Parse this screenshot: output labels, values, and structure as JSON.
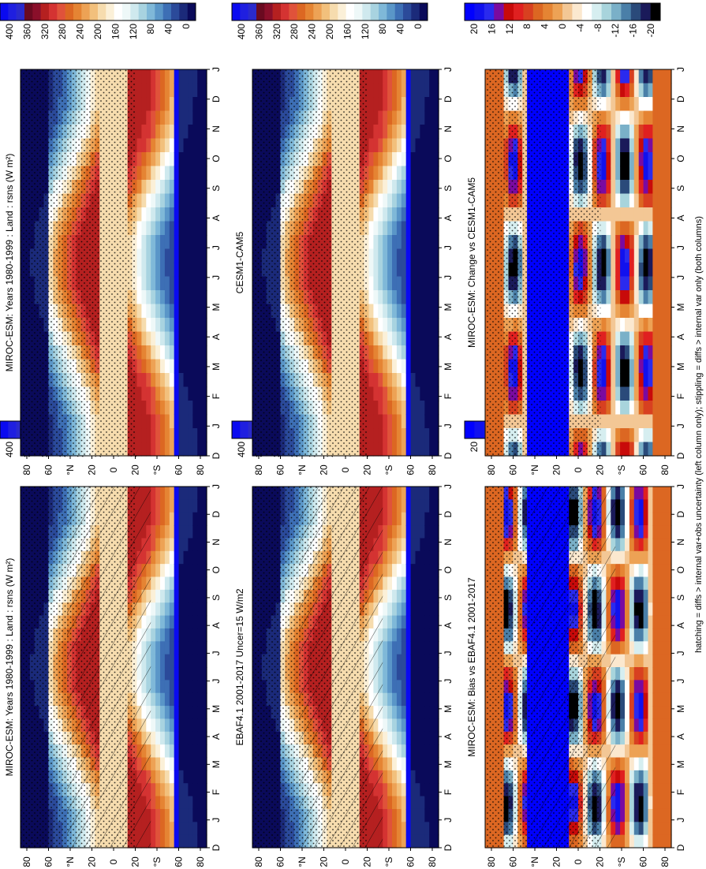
{
  "footer_caption": "hatching = diffs > internal var+obs uncertainty (left column only); stippling = diffs > internal var only (both columns)",
  "colors": {
    "abs_scale": [
      "#0a0a5a",
      "#1b2a7a",
      "#2b4a9a",
      "#3d6fb5",
      "#5a96c8",
      "#7fb8d8",
      "#a8d3e0",
      "#cfe9ee",
      "#eef8f8",
      "#ffffff",
      "#fbf0d8",
      "#f6dcae",
      "#f2c07c",
      "#eda255",
      "#e58433",
      "#dc6722",
      "#e0523a",
      "#d43332",
      "#b52020",
      "#8a0f2a",
      "#6a0a20",
      "#2a2acc",
      "#1f1fe0",
      "#0a0af0"
    ],
    "diff_scale": [
      "#000000",
      "#1a1a5a",
      "#2a4a7a",
      "#4a7fa8",
      "#7ab0c8",
      "#a8d4dc",
      "#d6eef0",
      "#ffffff",
      "#fbe8cf",
      "#f3c795",
      "#eda255",
      "#e58433",
      "#dc6722",
      "#d84020",
      "#e02020",
      "#c80a0a",
      "#7a0aa0",
      "#2a2aee",
      "#1111ee",
      "#0000ff"
    ]
  },
  "chart_data": [
    {
      "type": "heatmap",
      "panel": "top-left",
      "title": "MIROC-ESM: Years 1980-1999 : Land : rsns (W m²)",
      "x_ticks": [
        "D",
        "J",
        "F",
        "M",
        "A",
        "M",
        "J",
        "J",
        "A",
        "S",
        "O",
        "N",
        "D",
        "J"
      ],
      "y_ticks": [
        "80",
        "60",
        "°N",
        "20",
        "0",
        "20",
        "°S",
        "60",
        "80"
      ],
      "colorbar_ticks": [
        "400",
        "360",
        "320",
        "280",
        "240",
        "200",
        "160",
        "120",
        "80",
        "40",
        "0"
      ],
      "zlim": [
        0,
        400
      ],
      "hatching": true,
      "stippling": true
    },
    {
      "type": "heatmap",
      "panel": "top-right",
      "title": "MIROC-ESM: Years 1980-1999 : Land : rsns (W m²)",
      "x_ticks": [
        "D",
        "J",
        "F",
        "M",
        "A",
        "M",
        "J",
        "J",
        "A",
        "S",
        "O",
        "N",
        "D",
        "J"
      ],
      "y_ticks": [
        "80",
        "60",
        "°N",
        "20",
        "0",
        "20",
        "°S",
        "60",
        "80"
      ],
      "colorbar_ticks": [
        "400",
        "360",
        "320",
        "280",
        "240",
        "200",
        "160",
        "120",
        "80",
        "40",
        "0"
      ],
      "zlim": [
        0,
        400
      ],
      "hatching": false,
      "stippling": true
    },
    {
      "type": "heatmap",
      "panel": "middle-left",
      "title": "EBAF4.1 2001-2017 Uncer=15 W/m2",
      "x_ticks": [
        "D",
        "J",
        "F",
        "M",
        "A",
        "M",
        "J",
        "J",
        "A",
        "S",
        "O",
        "N",
        "D",
        "J"
      ],
      "y_ticks": [
        "80",
        "60",
        "°N",
        "20",
        "0",
        "20",
        "°S",
        "60",
        "80"
      ],
      "colorbar_ticks": [
        "400",
        "360",
        "320",
        "280",
        "240",
        "200",
        "160",
        "120",
        "80",
        "40",
        "0"
      ],
      "zlim": [
        0,
        400
      ],
      "hatching": true,
      "stippling": true
    },
    {
      "type": "heatmap",
      "panel": "middle-right",
      "title": "CESM1-CAM5",
      "x_ticks": [
        "D",
        "J",
        "F",
        "M",
        "A",
        "M",
        "J",
        "J",
        "A",
        "S",
        "O",
        "N",
        "D",
        "J"
      ],
      "y_ticks": [
        "80",
        "60",
        "°N",
        "20",
        "0",
        "20",
        "°S",
        "60",
        "80"
      ],
      "colorbar_ticks": [
        "400",
        "360",
        "320",
        "280",
        "240",
        "200",
        "160",
        "120",
        "80",
        "40",
        "0"
      ],
      "zlim": [
        0,
        400
      ],
      "hatching": false,
      "stippling": true
    },
    {
      "type": "heatmap",
      "panel": "bottom-left",
      "title": "MIROC-ESM: Bias vs EBAF4.1 2001-2017",
      "x_ticks": [
        "D",
        "J",
        "F",
        "M",
        "A",
        "M",
        "J",
        "J",
        "A",
        "S",
        "O",
        "N",
        "D",
        "J"
      ],
      "y_ticks": [
        "80",
        "60",
        "°N",
        "20",
        "0",
        "20",
        "°S",
        "60",
        "80"
      ],
      "colorbar_ticks": [
        "20",
        "16",
        "12",
        "8",
        "4",
        "0",
        "-4",
        "-8",
        "-12",
        "-16",
        "-20"
      ],
      "zlim": [
        -20,
        20
      ],
      "hatching": true,
      "stippling": true
    },
    {
      "type": "heatmap",
      "panel": "bottom-right",
      "title": "MIROC-ESM: Change vs CESM1-CAM5",
      "x_ticks": [
        "D",
        "J",
        "F",
        "M",
        "A",
        "M",
        "J",
        "J",
        "A",
        "S",
        "O",
        "N",
        "D",
        "J"
      ],
      "y_ticks": [
        "80",
        "60",
        "°N",
        "20",
        "0",
        "20",
        "°S",
        "60",
        "80"
      ],
      "colorbar_ticks": [
        "20",
        "16",
        "12",
        "8",
        "4",
        "0",
        "-4",
        "-8",
        "-12",
        "-16",
        "-20"
      ],
      "zlim": [
        -20,
        20
      ],
      "hatching": false,
      "stippling": true
    }
  ]
}
